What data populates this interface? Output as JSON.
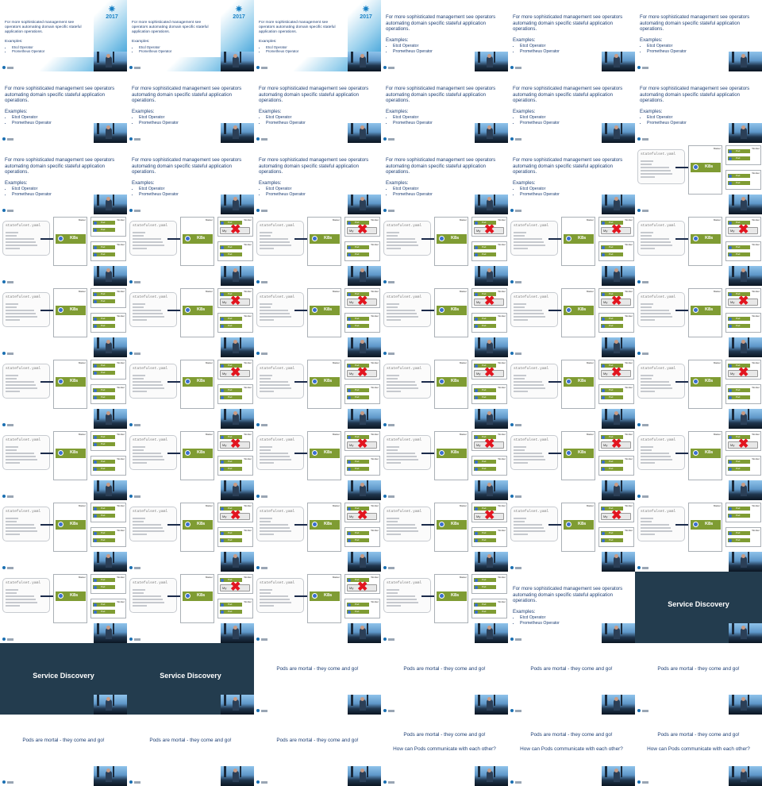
{
  "slides": {
    "operators": {
      "text": "For more sophisticated management see operators automating domain specific stateful application operations.",
      "examples_label": "Examples:",
      "examples": [
        "Etcd Operator",
        "Prometheus Operator"
      ],
      "brand_year": "2017"
    },
    "statefulset": {
      "yaml_title": "statefulset.yaml",
      "cluster_label": "Master",
      "node_label": "Worker",
      "k8s_label": "K8s",
      "pod_label": "Pod",
      "pod_short": "My"
    },
    "section": {
      "title": "Service Discovery"
    },
    "pods": {
      "mortal": "Pods are mortal - they come and go!",
      "question": "How can Pods communicate with each other?"
    }
  },
  "frames": [
    {
      "type": "title"
    },
    {
      "type": "title"
    },
    {
      "type": "title"
    },
    {
      "type": "ops"
    },
    {
      "type": "ops"
    },
    {
      "type": "ops"
    },
    {
      "type": "ops"
    },
    {
      "type": "ops"
    },
    {
      "type": "ops"
    },
    {
      "type": "ops"
    },
    {
      "type": "ops"
    },
    {
      "type": "ops"
    },
    {
      "type": "ops"
    },
    {
      "type": "ops"
    },
    {
      "type": "ops"
    },
    {
      "type": "ops"
    },
    {
      "type": "ops"
    },
    {
      "type": "diagram",
      "fail": false
    },
    {
      "type": "diagram",
      "fail": false
    },
    {
      "type": "diagram",
      "fail": true
    },
    {
      "type": "diagram",
      "fail": true
    },
    {
      "type": "diagram",
      "fail": true
    },
    {
      "type": "diagram",
      "fail": true
    },
    {
      "type": "diagram",
      "fail": true
    },
    {
      "type": "diagram",
      "fail": false
    },
    {
      "type": "diagram",
      "fail": true
    },
    {
      "type": "diagram",
      "fail": true
    },
    {
      "type": "diagram",
      "fail": true
    },
    {
      "type": "diagram",
      "fail": true
    },
    {
      "type": "diagram",
      "fail": true
    },
    {
      "type": "diagram",
      "fail": false
    },
    {
      "type": "diagram",
      "fail": true
    },
    {
      "type": "diagram",
      "fail": true
    },
    {
      "type": "diagram",
      "fail": true
    },
    {
      "type": "diagram",
      "fail": true
    },
    {
      "type": "diagram",
      "fail": true
    },
    {
      "type": "diagram",
      "fail": false
    },
    {
      "type": "diagram",
      "fail": true
    },
    {
      "type": "diagram",
      "fail": true
    },
    {
      "type": "diagram",
      "fail": true
    },
    {
      "type": "diagram",
      "fail": true
    },
    {
      "type": "diagram",
      "fail": true
    },
    {
      "type": "diagram",
      "fail": false
    },
    {
      "type": "diagram",
      "fail": true
    },
    {
      "type": "diagram",
      "fail": true
    },
    {
      "type": "diagram",
      "fail": true
    },
    {
      "type": "diagram",
      "fail": true
    },
    {
      "type": "diagram",
      "fail": false
    },
    {
      "type": "diagram",
      "fail": false
    },
    {
      "type": "diagram",
      "fail": true
    },
    {
      "type": "diagram",
      "fail": true
    },
    {
      "type": "diagram",
      "fail": false
    },
    {
      "type": "ops"
    },
    {
      "type": "section"
    },
    {
      "type": "section"
    },
    {
      "type": "section"
    },
    {
      "type": "mortal"
    },
    {
      "type": "mortal"
    },
    {
      "type": "mortal"
    },
    {
      "type": "mortal"
    },
    {
      "type": "mortal"
    },
    {
      "type": "mortal"
    },
    {
      "type": "mortal"
    },
    {
      "type": "question"
    },
    {
      "type": "question"
    },
    {
      "type": "question"
    }
  ]
}
